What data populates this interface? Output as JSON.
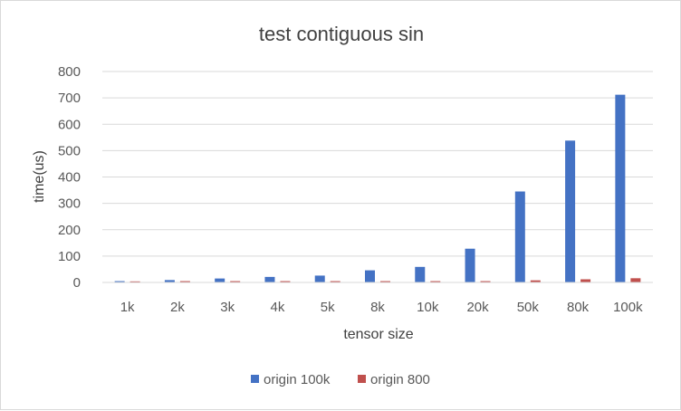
{
  "chart_data": {
    "type": "bar",
    "title": "test contiguous sin",
    "xlabel": "tensor size",
    "ylabel": "time(us)",
    "categories": [
      "1k",
      "2k",
      "3k",
      "4k",
      "5k",
      "8k",
      "10k",
      "20k",
      "50k",
      "80k",
      "100k"
    ],
    "ylim": [
      0,
      800
    ],
    "yticks": [
      "0",
      "100",
      "200",
      "300",
      "400",
      "500",
      "600",
      "700",
      "800"
    ],
    "grid": true,
    "legend_position": "bottom",
    "series": [
      {
        "name": "origin 100k",
        "color": "#4472C4",
        "values": [
          5,
          9,
          15,
          21,
          26,
          46,
          59,
          128,
          345,
          538,
          712
        ]
      },
      {
        "name": "origin 800",
        "color": "#C0504D",
        "values": [
          4,
          5,
          5,
          5,
          5,
          5,
          5,
          5,
          8,
          12,
          16
        ]
      }
    ]
  }
}
